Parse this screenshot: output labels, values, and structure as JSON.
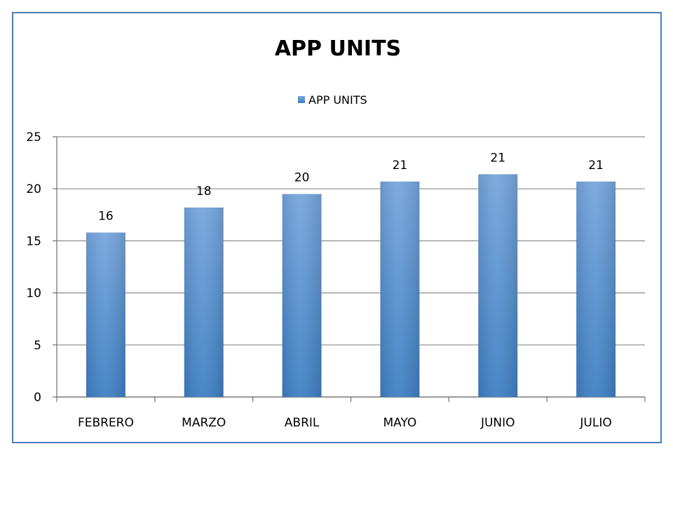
{
  "chart_data": {
    "type": "bar",
    "title": "APP UNITS",
    "xlabel": "",
    "ylabel": "",
    "categories": [
      "FEBRERO",
      "MARZO",
      "ABRIL",
      "MAYO",
      "JUNIO",
      "JULIO"
    ],
    "series": [
      {
        "name": "APP UNITS",
        "values": [
          15.8,
          18.2,
          19.5,
          20.7,
          21.4,
          20.7
        ],
        "labels": [
          "16",
          "18",
          "20",
          "21",
          "21",
          "21"
        ]
      }
    ],
    "ylim": [
      0,
      25
    ],
    "yticks": [
      "0",
      "5",
      "10",
      "15",
      "20",
      "25"
    ],
    "grid": true,
    "legend": "top",
    "colors": {
      "bar_light": "#75a6dd",
      "bar_dark": "#3e7fc4",
      "frame": "#4a7ebb",
      "grid": "#8c8c8c"
    }
  }
}
